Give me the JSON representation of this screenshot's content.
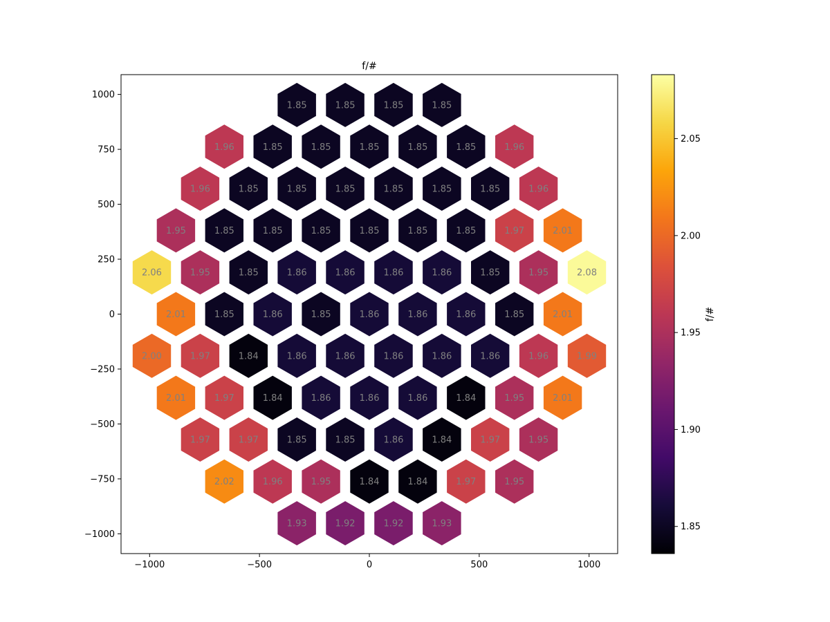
{
  "chart_data": {
    "type": "heatmap",
    "title": "f/#",
    "xlabel": "",
    "ylabel": "",
    "xlim": [
      -1130,
      1130
    ],
    "ylim": [
      -1090,
      1090
    ],
    "x_ticks": [
      -1000,
      -500,
      0,
      500,
      1000
    ],
    "x_tick_labels": [
      "−1000",
      "−500",
      "0",
      "500",
      "1000"
    ],
    "y_ticks": [
      1000,
      750,
      500,
      250,
      0,
      -250,
      -500,
      -750,
      -1000
    ],
    "y_tick_labels": [
      "1000",
      "750",
      "500",
      "250",
      "0",
      "−250",
      "−500",
      "−750",
      "−1000"
    ],
    "colorbar": {
      "label": "f/#",
      "colormap": "inferno",
      "range": [
        1.836,
        2.083
      ],
      "ticks": [
        1.85,
        1.9,
        1.95,
        2.0,
        2.05
      ],
      "tick_labels": [
        "1.85",
        "1.90",
        "1.95",
        "2.00",
        "2.05"
      ]
    },
    "rows": [
      {
        "y": 952,
        "x": [
          -330,
          -110,
          110,
          330
        ],
        "values": [
          "1.85",
          "1.85",
          "1.85",
          "1.85"
        ]
      },
      {
        "y": 762,
        "x": [
          -660,
          -440,
          -220,
          0,
          220,
          440,
          660
        ],
        "values": [
          "1.96",
          "1.85",
          "1.85",
          "1.85",
          "1.85",
          "1.85",
          "1.96"
        ]
      },
      {
        "y": 571,
        "x": [
          -770,
          -550,
          -330,
          -110,
          110,
          330,
          550,
          770
        ],
        "values": [
          "1.96",
          "1.85",
          "1.85",
          "1.85",
          "1.85",
          "1.85",
          "1.85",
          "1.96"
        ]
      },
      {
        "y": 381,
        "x": [
          -880,
          -660,
          -440,
          -220,
          0,
          220,
          440,
          660,
          880
        ],
        "values": [
          "1.95",
          "1.85",
          "1.85",
          "1.85",
          "1.85",
          "1.85",
          "1.85",
          "1.97",
          "2.01"
        ]
      },
      {
        "y": 190,
        "x": [
          -990,
          -770,
          -550,
          -330,
          -110,
          110,
          330,
          550,
          770,
          990
        ],
        "values": [
          "2.06",
          "1.95",
          "1.85",
          "1.86",
          "1.86",
          "1.86",
          "1.86",
          "1.85",
          "1.95",
          "2.08"
        ]
      },
      {
        "y": 0,
        "x": [
          -880,
          -660,
          -440,
          -220,
          0,
          220,
          440,
          660,
          880
        ],
        "values": [
          "2.01",
          "1.85",
          "1.86",
          "1.85",
          "1.86",
          "1.86",
          "1.86",
          "1.85",
          "2.01"
        ]
      },
      {
        "y": -190,
        "x": [
          -990,
          -770,
          -550,
          -330,
          -110,
          110,
          330,
          550,
          770,
          990
        ],
        "values": [
          "2.00",
          "1.97",
          "1.84",
          "1.86",
          "1.86",
          "1.86",
          "1.86",
          "1.86",
          "1.96",
          "1.99"
        ]
      },
      {
        "y": -381,
        "x": [
          -880,
          -660,
          -440,
          -220,
          0,
          220,
          440,
          660,
          880
        ],
        "values": [
          "2.01",
          "1.97",
          "1.84",
          "1.86",
          "1.86",
          "1.86",
          "1.84",
          "1.95",
          "2.01"
        ]
      },
      {
        "y": -571,
        "x": [
          -770,
          -550,
          -330,
          -110,
          110,
          330,
          550,
          770
        ],
        "values": [
          "1.97",
          "1.97",
          "1.85",
          "1.85",
          "1.86",
          "1.84",
          "1.97",
          "1.95"
        ]
      },
      {
        "y": -762,
        "x": [
          -660,
          -440,
          -220,
          0,
          220,
          440,
          660
        ],
        "values": [
          "2.02",
          "1.96",
          "1.95",
          "1.84",
          "1.84",
          "1.97",
          "1.95"
        ]
      },
      {
        "y": -952,
        "x": [
          -330,
          -110,
          110,
          330
        ],
        "values": [
          "1.93",
          "1.92",
          "1.92",
          "1.93"
        ]
      }
    ]
  }
}
